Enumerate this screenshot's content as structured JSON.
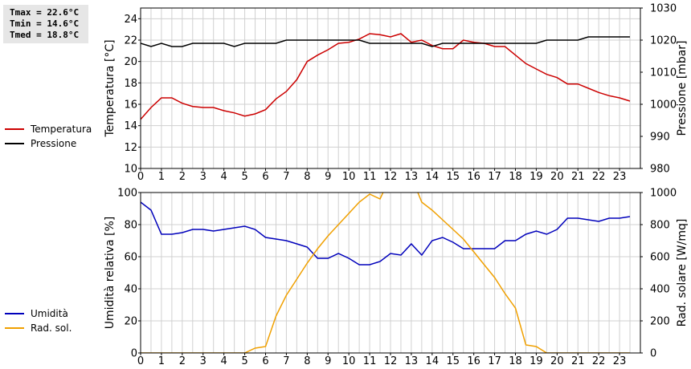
{
  "stats": {
    "tmax": "Tmax = 22.6°C",
    "tmin": "Tmin = 14.6°C",
    "tmed": "Tmed = 18.8°C"
  },
  "legend_top": [
    {
      "label": "Temperatura",
      "color": "#cc0000"
    },
    {
      "label": "Pressione",
      "color": "#000000"
    }
  ],
  "legend_bottom": [
    {
      "label": "Umidità",
      "color": "#0000bb"
    },
    {
      "label": "Rad. sol.",
      "color": "#f0a000"
    }
  ],
  "chart_data": [
    {
      "type": "line",
      "xlim": [
        0,
        24
      ],
      "xticks": [
        0,
        1,
        2,
        3,
        4,
        5,
        6,
        7,
        8,
        9,
        10,
        11,
        12,
        13,
        14,
        15,
        16,
        17,
        18,
        19,
        20,
        21,
        22,
        23
      ],
      "grid": true,
      "left_axis": {
        "label": "Temperatura [°C]",
        "ylim": [
          10,
          25
        ],
        "ticks": [
          10,
          12,
          14,
          16,
          18,
          20,
          22,
          24
        ]
      },
      "right_axis": {
        "label": "Pressione [mbar]",
        "ylim": [
          980,
          1030
        ],
        "ticks": [
          980,
          990,
          1000,
          1010,
          1020,
          1030
        ]
      },
      "series": [
        {
          "name": "Temperatura",
          "axis": "left",
          "color": "#cc0000",
          "x": [
            0,
            0.5,
            1,
            1.5,
            2,
            2.5,
            3,
            3.5,
            4,
            4.5,
            5,
            5.5,
            6,
            6.5,
            7,
            7.5,
            8,
            8.5,
            9,
            9.5,
            10,
            10.5,
            11,
            11.5,
            12,
            12.5,
            13,
            13.5,
            14,
            14.5,
            15,
            15.5,
            16,
            16.5,
            17,
            17.5,
            18,
            18.5,
            19,
            19.5,
            20,
            20.5,
            21,
            21.5,
            22,
            22.5,
            23,
            23.5
          ],
          "y": [
            14.6,
            15.7,
            16.6,
            16.6,
            16.1,
            15.8,
            15.7,
            15.7,
            15.4,
            15.2,
            14.9,
            15.1,
            15.5,
            16.5,
            17.2,
            18.3,
            20.0,
            20.6,
            21.1,
            21.7,
            21.8,
            22.1,
            22.6,
            22.5,
            22.3,
            22.6,
            21.8,
            22.0,
            21.5,
            21.2,
            21.2,
            22.0,
            21.8,
            21.7,
            21.4,
            21.4,
            20.6,
            19.8,
            19.3,
            18.8,
            18.5,
            17.9,
            17.9,
            17.5,
            17.1,
            16.8,
            16.6,
            16.3
          ]
        },
        {
          "name": "Pressione",
          "axis": "right",
          "color": "#000000",
          "x": [
            0,
            0.5,
            1,
            1.5,
            2,
            2.5,
            3,
            3.5,
            4,
            4.5,
            5,
            5.5,
            6,
            6.5,
            7,
            7.5,
            8,
            8.5,
            9,
            9.5,
            10,
            10.5,
            11,
            11.5,
            12,
            12.5,
            13,
            13.5,
            14,
            14.5,
            15,
            15.5,
            16,
            16.5,
            17,
            17.5,
            18,
            18.5,
            19,
            19.5,
            20,
            20.5,
            21,
            21.5,
            22,
            22.5,
            23,
            23.5
          ],
          "y": [
            1019,
            1018,
            1019,
            1018,
            1018,
            1019,
            1019,
            1019,
            1019,
            1018,
            1019,
            1019,
            1019,
            1019,
            1020,
            1020,
            1020,
            1020,
            1020,
            1020,
            1020,
            1020,
            1019,
            1019,
            1019,
            1019,
            1019,
            1019,
            1018,
            1019,
            1019,
            1019,
            1019,
            1019,
            1019,
            1019,
            1019,
            1019,
            1019,
            1020,
            1020,
            1020,
            1020,
            1021,
            1021,
            1021,
            1021,
            1021
          ]
        }
      ]
    },
    {
      "type": "line",
      "xlim": [
        0,
        24
      ],
      "xticks": [
        0,
        1,
        2,
        3,
        4,
        5,
        6,
        7,
        8,
        9,
        10,
        11,
        12,
        13,
        14,
        15,
        16,
        17,
        18,
        19,
        20,
        21,
        22,
        23
      ],
      "grid": true,
      "left_axis": {
        "label": "Umidità relativa [%]",
        "ylim": [
          0,
          100
        ],
        "ticks": [
          0,
          20,
          40,
          60,
          80,
          100
        ]
      },
      "right_axis": {
        "label": "Rad. solare [W/mq]",
        "ylim": [
          0,
          1000
        ],
        "ticks": [
          0,
          200,
          400,
          600,
          800,
          1000
        ]
      },
      "series": [
        {
          "name": "Umidità",
          "axis": "left",
          "color": "#0000bb",
          "x": [
            0,
            0.5,
            1,
            1.5,
            2,
            2.5,
            3,
            3.5,
            4,
            4.5,
            5,
            5.5,
            6,
            6.5,
            7,
            7.5,
            8,
            8.5,
            9,
            9.5,
            10,
            10.5,
            11,
            11.5,
            12,
            12.5,
            13,
            13.5,
            14,
            14.5,
            15,
            15.5,
            16,
            16.5,
            17,
            17.5,
            18,
            18.5,
            19,
            19.5,
            20,
            20.5,
            21,
            21.5,
            22,
            22.5,
            23,
            23.5
          ],
          "y": [
            94,
            89,
            74,
            74,
            75,
            77,
            77,
            76,
            77,
            78,
            79,
            77,
            72,
            71,
            70,
            68,
            66,
            59,
            59,
            62,
            59,
            55,
            55,
            57,
            62,
            61,
            68,
            61,
            70,
            72,
            69,
            65,
            65,
            65,
            65,
            70,
            70,
            74,
            76,
            74,
            77,
            84,
            84,
            83,
            82,
            84,
            84,
            85
          ]
        },
        {
          "name": "Rad. sol.",
          "axis": "right",
          "color": "#f0a000",
          "x": [
            0,
            1,
            2,
            3,
            4,
            5,
            5.5,
            6,
            6.5,
            7,
            7.5,
            8,
            8.5,
            9,
            9.5,
            10,
            10.5,
            11,
            11.5,
            12,
            13,
            13.5,
            14,
            14.5,
            15,
            15.5,
            16,
            16.5,
            17,
            17.5,
            18,
            18.5,
            19,
            19.5,
            20,
            21,
            22,
            23,
            23.5
          ],
          "y": [
            0,
            0,
            0,
            0,
            0,
            0,
            30,
            40,
            230,
            360,
            460,
            560,
            650,
            730,
            800,
            870,
            940,
            990,
            960,
            1100,
            1100,
            940,
            890,
            830,
            770,
            710,
            630,
            550,
            470,
            370,
            280,
            50,
            40,
            0,
            0,
            0,
            0,
            0,
            0
          ]
        }
      ]
    }
  ]
}
